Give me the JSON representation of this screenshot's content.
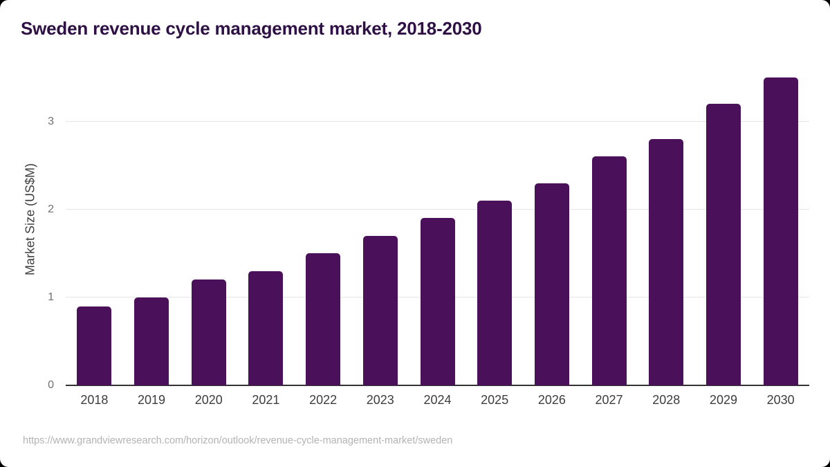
{
  "page": {
    "canvas_background": "#000000",
    "card_background": "#ffffff"
  },
  "header": {
    "title": "Sweden revenue cycle management market, 2018-2030"
  },
  "chart_data": {
    "type": "bar",
    "title": "Sweden revenue cycle management market, 2018-2030",
    "categories": [
      "2018",
      "2019",
      "2020",
      "2021",
      "2022",
      "2023",
      "2024",
      "2025",
      "2026",
      "2027",
      "2028",
      "2029",
      "2030"
    ],
    "values": [
      0.9,
      1.0,
      1.2,
      1.3,
      1.5,
      1.7,
      1.9,
      2.1,
      2.3,
      2.6,
      2.8,
      3.2,
      3.5
    ],
    "xlabel": "",
    "ylabel": "Market Size (US$M)",
    "ylim": [
      0,
      3.5
    ],
    "yticks": [
      0,
      1,
      2,
      3
    ],
    "grid": true,
    "legend": false,
    "colors": {
      "bar": "#4a1059",
      "title": "#2e1045",
      "grid_line": "#e4e4e4",
      "axis_line": "#333333",
      "y_tick_label": "#717171",
      "x_tick_label": "#3d3d3d",
      "axis_title": "#3f3f3f",
      "source_url": "#b3b3b3"
    }
  },
  "footer": {
    "source_url": "https://www.grandviewresearch.com/horizon/outlook/revenue-cycle-management-market/sweden"
  }
}
